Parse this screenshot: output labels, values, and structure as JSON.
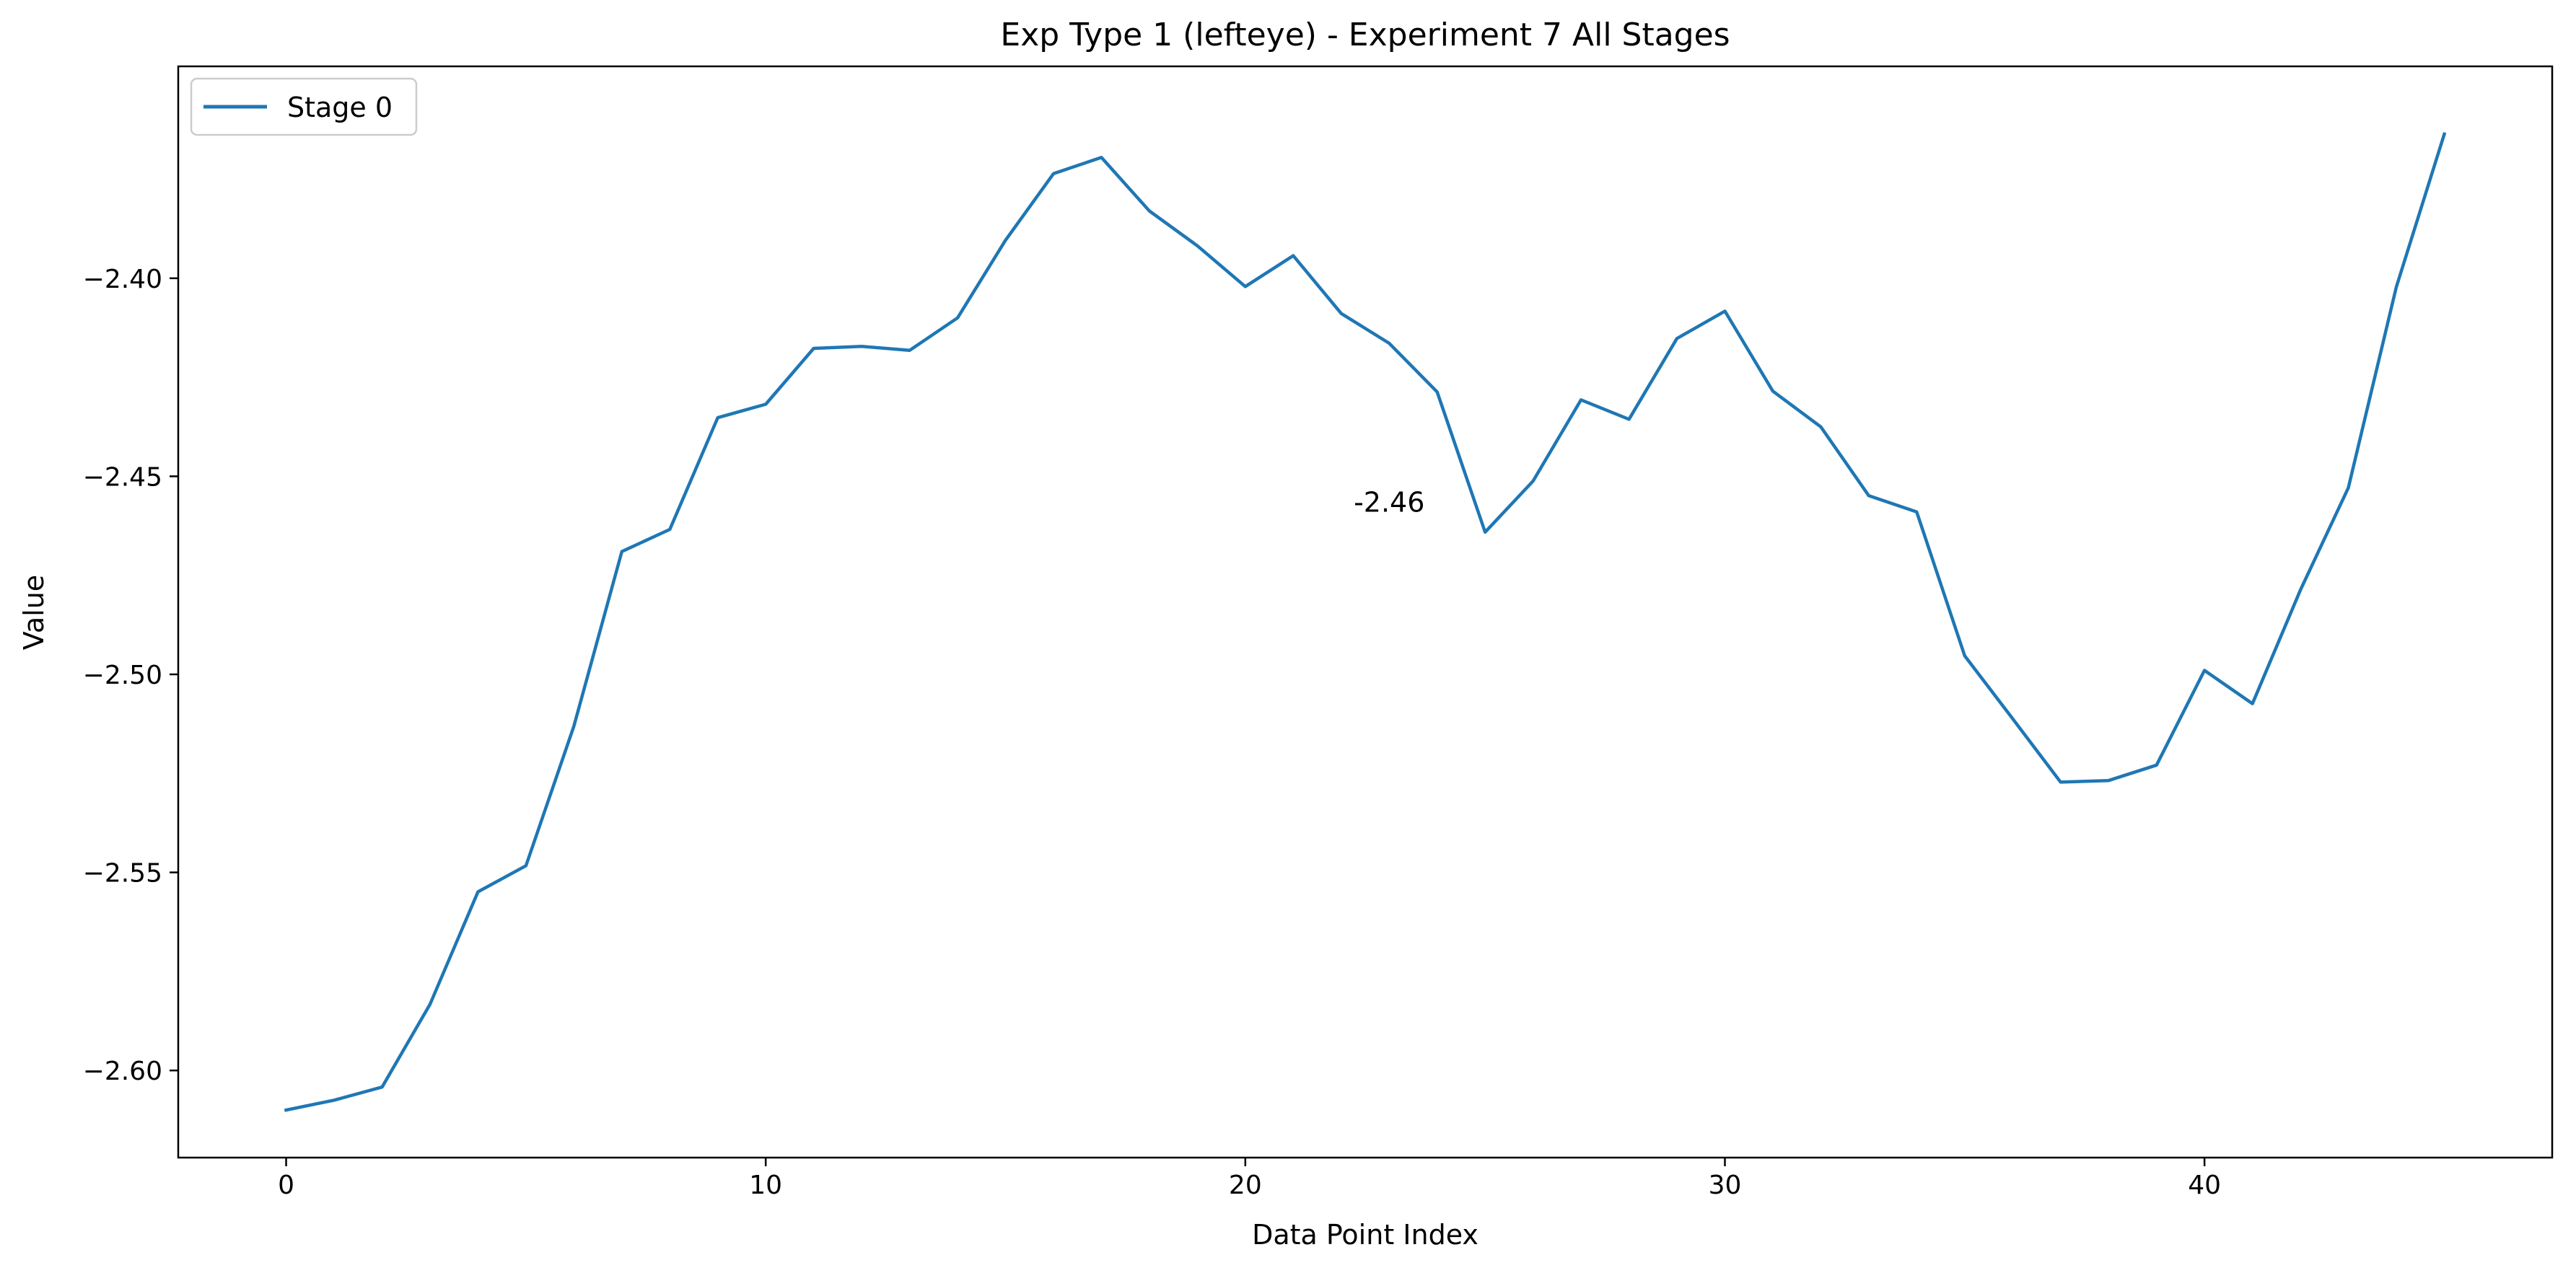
{
  "chart_data": {
    "type": "line",
    "title": "Exp Type 1 (lefteye) - Experiment 7 All Stages",
    "xlabel": "Data Point Index",
    "ylabel": "Value",
    "xlim": [
      -2.25,
      47.25
    ],
    "ylim": [
      -2.622,
      -2.3465
    ],
    "xticks": [
      0,
      10,
      20,
      30,
      40
    ],
    "xtick_labels": [
      "0",
      "10",
      "20",
      "30",
      "40"
    ],
    "yticks": [
      -2.6,
      -2.55,
      -2.5,
      -2.45,
      -2.4
    ],
    "ytick_labels": [
      "−2.60",
      "−2.55",
      "−2.50",
      "−2.45",
      "−2.40"
    ],
    "grid": false,
    "legend": {
      "position": "upper-left"
    },
    "series": [
      {
        "name": "Stage 0",
        "color": "#1f77b4",
        "x": [
          0,
          1,
          2,
          3,
          4,
          5,
          6,
          7,
          8,
          9,
          10,
          11,
          12,
          13,
          14,
          15,
          16,
          17,
          18,
          19,
          20,
          21,
          22,
          23,
          24,
          25,
          26,
          27,
          28,
          29,
          30,
          31,
          32,
          33,
          34,
          35,
          36,
          37,
          38,
          39,
          40,
          41,
          42,
          43,
          44,
          45
        ],
        "y": [
          -2.61,
          -2.6075,
          -2.6042,
          -2.5833,
          -2.5549,
          -2.5483,
          -2.5131,
          -2.469,
          -2.4634,
          -2.4352,
          -2.4318,
          -2.4177,
          -2.4172,
          -2.4182,
          -2.41,
          -2.3904,
          -2.3736,
          -2.3695,
          -2.383,
          -2.3918,
          -2.4021,
          -2.3943,
          -2.4089,
          -2.4164,
          -2.4287,
          -2.4641,
          -2.4512,
          -2.4307,
          -2.4356,
          -2.4152,
          -2.4083,
          -2.4285,
          -2.4375,
          -2.4549,
          -2.459,
          -2.4953,
          -2.5112,
          -2.5272,
          -2.5268,
          -2.5229,
          -2.499,
          -2.5074,
          -2.4787,
          -2.4529,
          -2.4022,
          -2.3636
        ]
      }
    ],
    "annotations": [
      {
        "text": "-2.46",
        "x": 23.0,
        "y": -2.4566
      }
    ]
  }
}
